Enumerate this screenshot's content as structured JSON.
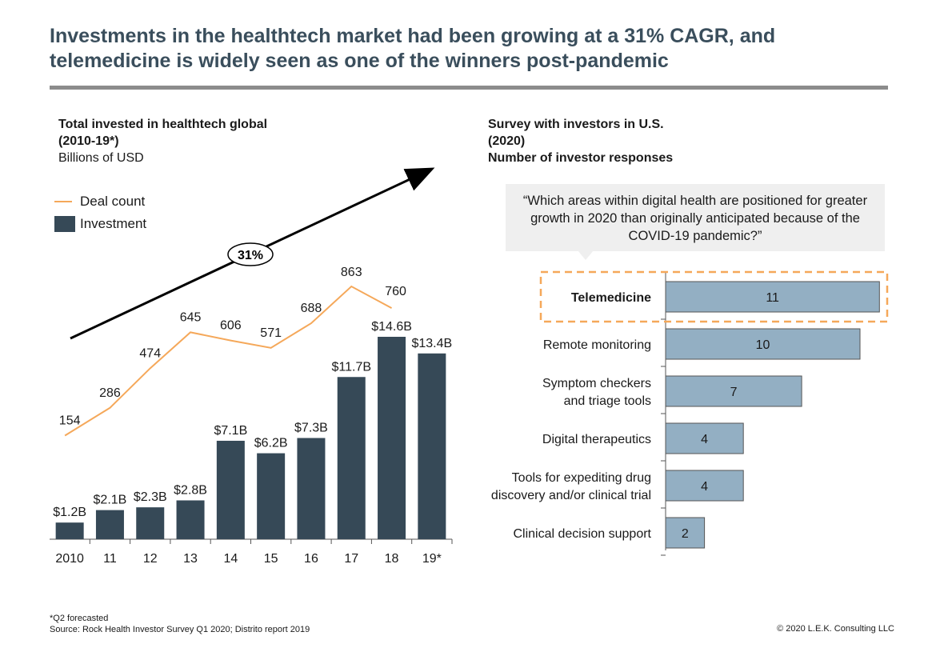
{
  "title": "Investments in the healthtech market had been growing at a 31% CAGR, and telemedicine is widely seen as one of the winners post-pandemic",
  "left_panel": {
    "heading_line1": "Total invested in healthtech global",
    "heading_line2": "(2010-19*)",
    "unit": "Billions of USD",
    "legend_deal": "Deal count",
    "legend_investment": "Investment",
    "cagr_label": "31%"
  },
  "right_panel": {
    "heading_line1": "Survey with investors in U.S.",
    "heading_line2": "(2020)",
    "heading_line3": "Number of investor responses",
    "quote": "“Which areas within digital health are positioned for greater growth in 2020 than originally anticipated because of the COVID-19 pandemic?”"
  },
  "chart_data": [
    {
      "type": "bar",
      "categories": [
        "2010",
        "11",
        "12",
        "13",
        "14",
        "15",
        "16",
        "17",
        "18",
        "19*"
      ],
      "series": [
        {
          "name": "Investment",
          "values": [
            1.2,
            2.1,
            2.3,
            2.8,
            7.1,
            6.2,
            7.3,
            11.7,
            14.6,
            13.4
          ],
          "labels": [
            "$1.2B",
            "$2.1B",
            "$2.3B",
            "$2.8B",
            "$7.1B",
            "$6.2B",
            "$7.3B",
            "$11.7B",
            "$14.6B",
            "$13.4B"
          ]
        },
        {
          "name": "Deal count",
          "type": "line",
          "values": [
            154,
            286,
            474,
            645,
            606,
            571,
            688,
            863,
            760,
            null
          ],
          "labels": [
            "154",
            "286",
            "474",
            "645",
            "606",
            "571",
            "688",
            "863",
            "760",
            ""
          ]
        }
      ],
      "title": "Total invested in healthtech global (2010-19*)",
      "ylabel": "Billions of USD",
      "legend": "top-left",
      "annotation": "31%",
      "colors": {
        "bar": "#364957",
        "line": "#f5a85a"
      }
    },
    {
      "type": "bar",
      "orientation": "horizontal",
      "categories": [
        "Telemedicine",
        "Remote monitoring",
        "Symptom checkers and triage tools",
        "Digital therapeutics",
        "Tools for expediting drug discovery and/or clinical trial",
        "Clinical decision support"
      ],
      "category_lines": [
        [
          "Telemedicine"
        ],
        [
          "Remote monitoring"
        ],
        [
          "Symptom checkers ",
          "and triage tools"
        ],
        [
          "Digital therapeutics"
        ],
        [
          "Tools for expediting drug",
          "discovery and/or clinical trial"
        ],
        [
          "Clinical decision support"
        ]
      ],
      "values": [
        11,
        10,
        7,
        4,
        4,
        2
      ],
      "highlight": "Telemedicine",
      "title": "Survey with investors in U.S. (2020)",
      "ylabel": "Number of investor responses",
      "colors": {
        "bar": "#93afc3",
        "highlight_border": "#f5a85a"
      }
    }
  ],
  "footnote_line1": "*Q2 forecasted",
  "footnote_line2": "Source: Rock Health Investor Survey Q1 2020; Distrito report 2019",
  "copyright": "© 2020 L.E.K. Consulting LLC"
}
